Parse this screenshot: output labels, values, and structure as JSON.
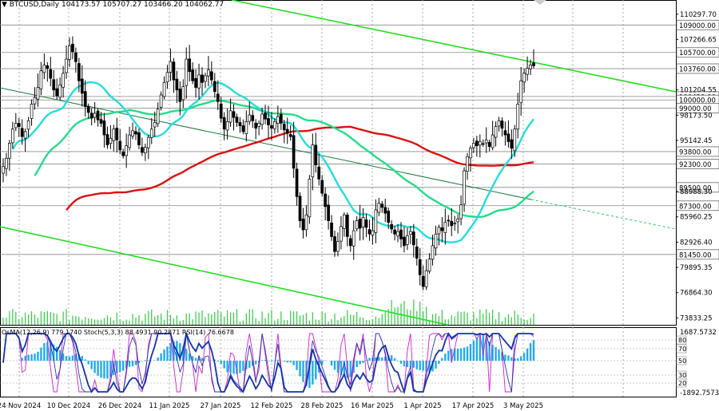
{
  "chart_data": {
    "type": "candlestick",
    "symbol_label": "BTCUSD,Daily",
    "ohlc_label": "104173.57 105707.27 103466.20 104062.77",
    "main_scale": {
      "ticks": [
        "110297.70",
        "107266.65",
        "101204.55",
        "98173.50",
        "95142.45",
        "88988.30",
        "85960.25",
        "82926.40",
        "79895.35",
        "76864.30",
        "73833.25"
      ]
    },
    "levels": [
      {
        "value": 109000,
        "label": "109000.00"
      },
      {
        "value": 105700,
        "label": "105700.00"
      },
      {
        "value": 103760,
        "label": "103760.00",
        "current": true
      },
      {
        "value": 100420,
        "label": "100420.00"
      },
      {
        "value": 100000,
        "label": "100000.00"
      },
      {
        "value": 99000,
        "label": "99000.00"
      },
      {
        "value": 93800,
        "label": "93800.00"
      },
      {
        "value": 92300,
        "label": "92300.00"
      },
      {
        "value": 89500,
        "label": "89500.00"
      },
      {
        "value": 87300,
        "label": "87300.00"
      },
      {
        "value": 81450,
        "label": "81450.00"
      }
    ],
    "x_labels": [
      "24 Nov 2024",
      "10 Dec 2024",
      "26 Dec 2024",
      "11 Jan 2025",
      "27 Jan 2025",
      "12 Feb 2025",
      "28 Feb 2025",
      "16 Mar 2025",
      "1 Apr 2025",
      "17 Apr 2025",
      "3 May 2025"
    ],
    "close_path": [
      92000,
      93000,
      94800,
      96500,
      97200,
      96800,
      95600,
      96200,
      97500,
      99500,
      100300,
      101500,
      103500,
      104200,
      103800,
      102600,
      101200,
      100500,
      101800,
      103200,
      104900,
      106500,
      105800,
      104600,
      102300,
      100800,
      99200,
      98500,
      97800,
      98400,
      97600,
      97200,
      95800,
      94600,
      95400,
      96500,
      95200,
      94000,
      93300,
      94500,
      95800,
      96300,
      95900,
      94600,
      93700,
      94300,
      95500,
      96500,
      97300,
      98900,
      100600,
      102100,
      103300,
      104600,
      102400,
      101200,
      99800,
      101600,
      104900,
      103400,
      102300,
      101500,
      103000,
      102100,
      102900,
      103600,
      102400,
      101000,
      99800,
      97800,
      96500,
      97400,
      98700,
      97900,
      97300,
      96900,
      96200,
      97400,
      98200,
      97500,
      96600,
      97200,
      98300,
      97700,
      97000,
      96600,
      97400,
      98000,
      97200,
      96400,
      96000,
      95600,
      91800,
      88400,
      85500,
      84400,
      86200,
      90500,
      94600,
      92200,
      90500,
      88800,
      87200,
      85500,
      83600,
      81800,
      83000,
      84800,
      86200,
      83600,
      82500,
      84300,
      85500,
      84600,
      85900,
      84700,
      83900,
      84300,
      86800,
      87600,
      87100,
      86400,
      85300,
      84500,
      83900,
      84200,
      83300,
      82500,
      83700,
      84200,
      82600,
      81000,
      79000,
      77600,
      79500,
      80900,
      82500,
      83900,
      84700,
      84300,
      85300,
      85500,
      84900,
      85200,
      85700,
      87400,
      91500,
      93200,
      94200,
      94800,
      94500,
      95000,
      94700,
      95200,
      94400,
      95800,
      96800,
      97500,
      96600,
      95800,
      95000,
      94200,
      96500,
      99500,
      102300,
      103200,
      103800,
      104200,
      104100
    ],
    "volume_label": "Volume",
    "osma_label": "OsMA(12,26,9) 779.1740",
    "stoch_label": "Stoch(5,3,3) 88.4931 90.2871",
    "rsi_label": "RSI(14) 76.6678",
    "sub_scale": {
      "top": "1687.5732",
      "bottom": "-1892.7573",
      "levels": [
        "80",
        "70",
        "50",
        "30",
        "20"
      ]
    },
    "colors": {
      "candle": "#000000",
      "trend_channel": "#22dd22",
      "ma_fast": "#22dddd",
      "ma_mid": "#22dd88",
      "ma_slow": "#dd1111",
      "volume": "#2ecc40",
      "osma": "#22aaee",
      "stoch_main": "#3333aa",
      "stoch_signal": "#cc22cc",
      "rsi": "#1133aa",
      "current_level": "#eeeeee"
    }
  }
}
